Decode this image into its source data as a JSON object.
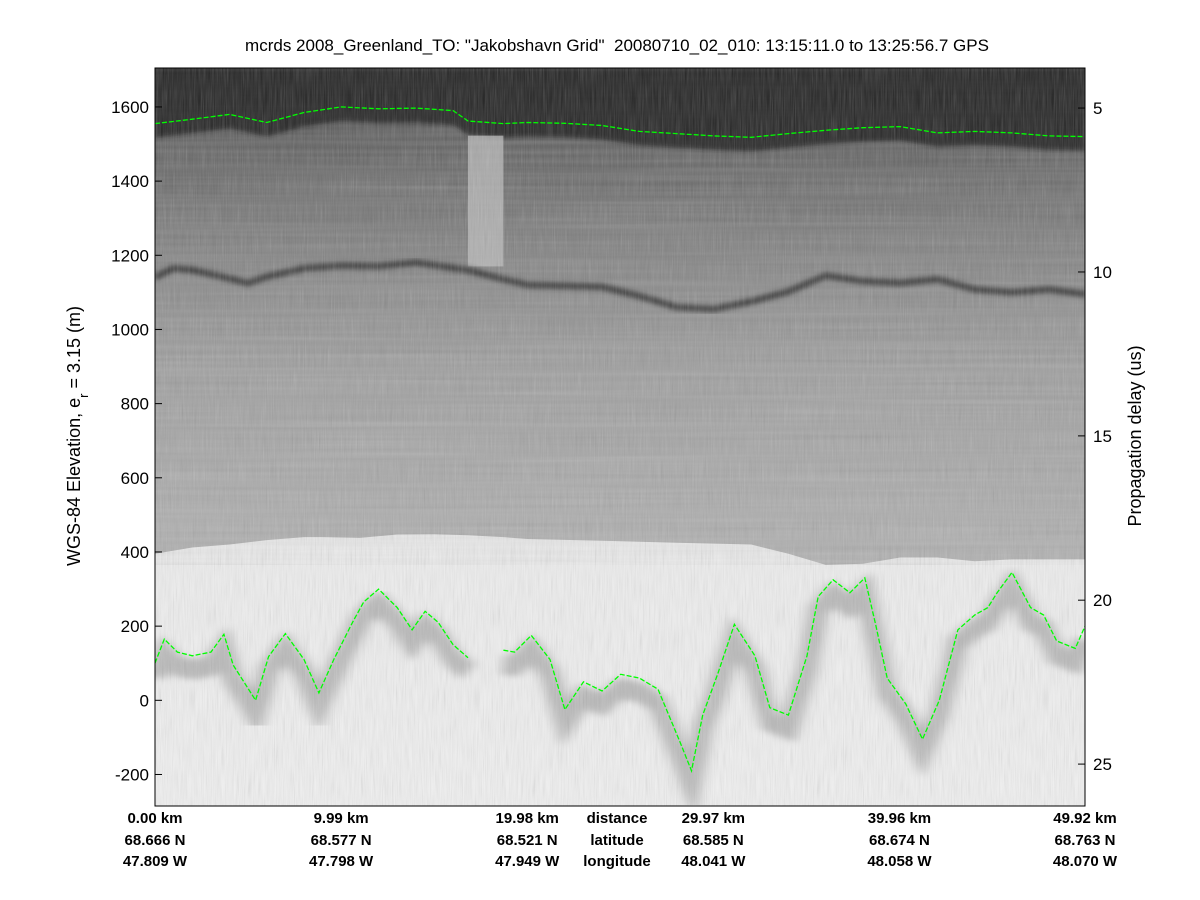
{
  "chart_data": {
    "type": "heatmap",
    "title": "mcrds 2008_Greenland_TO: \"Jakobshavn Grid\"  20080710_02_010: 13:15:11.0 to 13:25:56.7 GPS",
    "ylabel_left_main": "WGS-84 Elevation, e",
    "ylabel_left_sub": "r",
    "ylabel_left_tail": " = 3.15 (m)",
    "ylabel_right": "Propagation delay (us)",
    "colormap": "gray",
    "ylim_left": [
      -285,
      1705
    ],
    "yticks_left": [
      -200,
      0,
      200,
      400,
      600,
      800,
      1000,
      1200,
      1400,
      1600
    ],
    "yticks_right": [
      {
        "label": "5",
        "elev": 1597
      },
      {
        "label": "10",
        "elev": 1155
      },
      {
        "label": "15",
        "elev": 713
      },
      {
        "label": "20",
        "elev": 270
      },
      {
        "label": "25",
        "elev": -172
      }
    ],
    "xlim_km": [
      0,
      49.92
    ],
    "data_gap_km": [
      16.8,
      18.7
    ],
    "surface_pick": {
      "color": "#00ff00",
      "distance_km": [
        0,
        2,
        4,
        6,
        8,
        10,
        12,
        14,
        16,
        16.8,
        18.7,
        20,
        22,
        24,
        26,
        28,
        30,
        32,
        34,
        36,
        38,
        40,
        42,
        44,
        46,
        48,
        49.92
      ],
      "elevation_m": [
        1555,
        1567,
        1580,
        1558,
        1585,
        1600,
        1595,
        1597,
        1590,
        1562,
        1555,
        1558,
        1556,
        1550,
        1534,
        1528,
        1522,
        1518,
        1528,
        1537,
        1544,
        1547,
        1530,
        1534,
        1530,
        1522,
        1520
      ]
    },
    "internal_layer": {
      "distance_km": [
        0,
        1,
        2,
        3.5,
        5,
        6,
        8,
        10,
        12,
        14,
        16.8,
        18.7,
        20,
        22,
        24,
        26,
        28,
        30,
        32,
        34,
        36,
        38,
        40,
        42,
        44,
        46,
        48,
        49.92
      ],
      "elevation_m": [
        1140,
        1165,
        1160,
        1143,
        1125,
        1142,
        1165,
        1172,
        1170,
        1180,
        1160,
        1135,
        1120,
        1118,
        1115,
        1090,
        1060,
        1055,
        1075,
        1102,
        1145,
        1130,
        1125,
        1135,
        1108,
        1100,
        1108,
        1095
      ]
    },
    "noise_floor": {
      "distance_km": [
        0,
        2,
        4,
        6,
        8,
        9,
        11,
        13,
        15,
        16.8,
        18.7,
        20,
        24,
        28,
        32,
        34,
        36,
        38,
        40,
        42,
        44,
        46,
        49.92
      ],
      "elevation_m": [
        395,
        412,
        420,
        432,
        440,
        440,
        438,
        447,
        448,
        445,
        440,
        435,
        430,
        425,
        420,
        395,
        365,
        368,
        385,
        385,
        375,
        380,
        380
      ]
    },
    "bed_pick": {
      "color": "#00ff00",
      "segments": [
        {
          "distance_km": [
            0,
            0.5,
            1.2,
            2,
            3,
            3.7,
            4.2,
            5.4,
            6.1,
            7,
            8,
            8.8,
            9.6,
            10.6,
            11.2,
            12,
            13,
            13.8,
            14.5,
            15.2,
            16.0,
            16.8
          ],
          "elevation_m": [
            100,
            165,
            130,
            120,
            130,
            178,
            95,
            0,
            118,
            180,
            110,
            20,
            110,
            210,
            265,
            300,
            250,
            190,
            240,
            210,
            150,
            115
          ]
        },
        {
          "distance_km": [
            18.7,
            19.3,
            20.2,
            21.2,
            22,
            23,
            24,
            25,
            26,
            27,
            28.2,
            28.8,
            29.4,
            30.2,
            31.1,
            32.2,
            33,
            34,
            35,
            35.6,
            36.4,
            37.3,
            38.1,
            38.7,
            39.3,
            40.3,
            41.2,
            42.1,
            43.1,
            44,
            44.7,
            45.2,
            46,
            47,
            47.7,
            48.4,
            49.4,
            49.92
          ],
          "elevation_m": [
            135,
            130,
            175,
            110,
            -25,
            50,
            25,
            70,
            60,
            30,
            -115,
            -190,
            -40,
            70,
            205,
            120,
            -20,
            -40,
            120,
            280,
            325,
            290,
            330,
            200,
            60,
            -10,
            -105,
            0,
            190,
            230,
            250,
            290,
            345,
            250,
            230,
            160,
            140,
            200
          ]
        }
      ]
    },
    "bottom_rows": {
      "distance": [
        "0.00 km",
        "9.99 km",
        "19.98 km",
        "29.97 km",
        "39.96 km",
        "49.92 km"
      ],
      "latitude": [
        "68.666 N",
        "68.577 N",
        "68.521 N",
        "68.585 N",
        "68.674 N",
        "68.763 N"
      ],
      "longitude": [
        "47.809 W",
        "47.798 W",
        "47.949 W",
        "48.041 W",
        "48.058 W",
        "48.070 W"
      ],
      "row_labels": [
        "distance",
        "latitude",
        "longitude"
      ]
    }
  }
}
